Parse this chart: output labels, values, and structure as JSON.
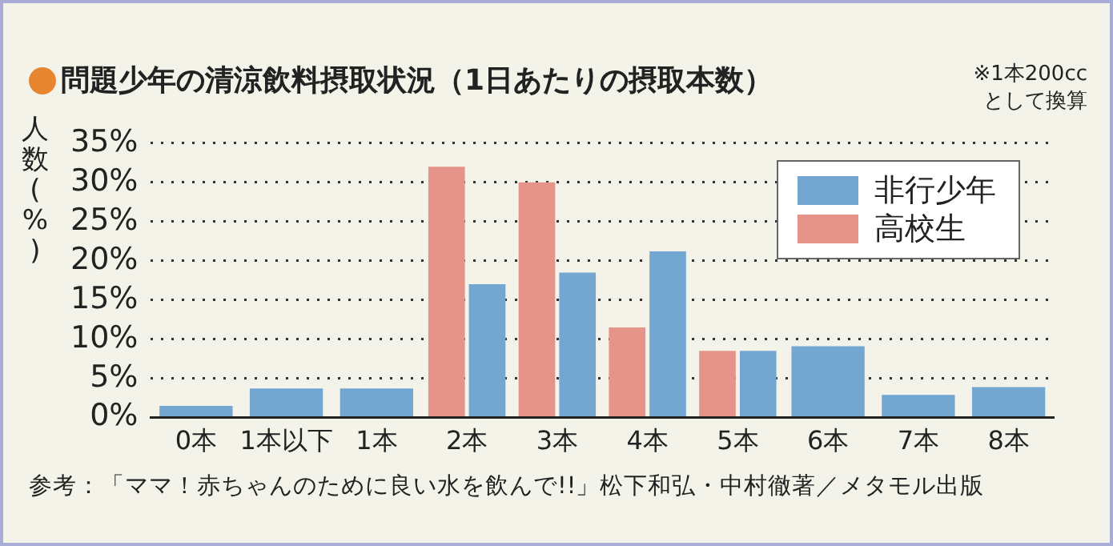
{
  "chart_data": {
    "type": "bar",
    "title": "問題少年の清涼飲料摂取状況（1日あたりの摂取本数）",
    "ylabel": "人数(%)",
    "annotations": [
      "※1本200cc\nとして換算",
      "参考：「ママ！赤ちゃんのために良い水を飲んで!!」松下和弘・中村徹著／メタモル出版"
    ],
    "categories": [
      "0本",
      "1本以下",
      "1本",
      "2本",
      "3本",
      "4本",
      "5本",
      "6本",
      "7本",
      "8本"
    ],
    "series": [
      {
        "name": "非行少年",
        "color": "#74a6d2",
        "values": [
          1.5,
          3.7,
          3.7,
          17.0,
          18.5,
          21.2,
          8.5,
          9.1,
          2.9,
          3.9
        ]
      },
      {
        "name": "高校生",
        "color": "#e6938a",
        "values": [
          null,
          null,
          null,
          32.0,
          30.0,
          11.5,
          8.5,
          null,
          null,
          null
        ]
      }
    ],
    "ylim": [
      0,
      35
    ],
    "yticks": [
      {
        "value": 0,
        "label": "0%"
      },
      {
        "value": 5,
        "label": "5%"
      },
      {
        "value": 10,
        "label": "10%"
      },
      {
        "value": 15,
        "label": "15%"
      },
      {
        "value": 20,
        "label": "20%"
      },
      {
        "value": 25,
        "label": "25%"
      },
      {
        "value": 30,
        "label": "30%"
      },
      {
        "value": 35,
        "label": "35%"
      }
    ],
    "grid": "y",
    "legend": "top right"
  }
}
